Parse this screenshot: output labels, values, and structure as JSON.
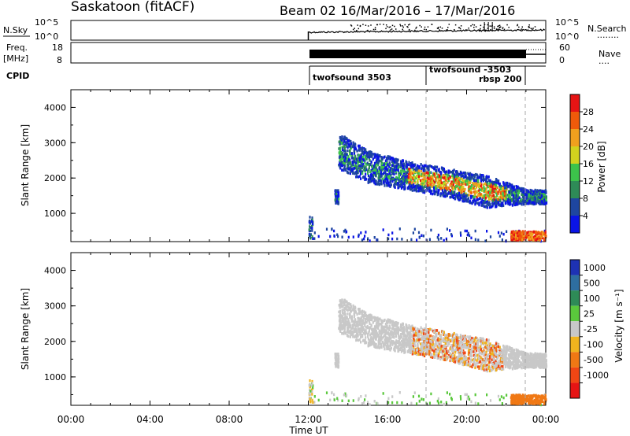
{
  "header": {
    "station": "Saskatoon (fitACF)",
    "beam": "Beam 02",
    "dates": "16/Mar/2016 – 17/Mar/2016"
  },
  "labels": {
    "nsky": "N.Sky",
    "nsky_ticks": [
      "10^5",
      "10^0"
    ],
    "nsearch": "N.Search",
    "nsearch_dots": "········",
    "nsearch_ticks": [
      "10^5",
      "10^0"
    ],
    "freq_line1": "Freq.",
    "freq_line2": "[MHz]",
    "freq_ticks": [
      "18",
      "8"
    ],
    "nave": "Nave",
    "nave_dots": "····",
    "nave_ticks": [
      "60",
      "0"
    ],
    "cpid": "CPID",
    "cpid_entries": [
      "twofsound 3503",
      "twofsound -3503",
      "rbsp 200"
    ]
  },
  "colorbars": {
    "power": {
      "label": "Power [dB]",
      "ticks": [
        "4",
        "8",
        "12",
        "16",
        "20",
        "24",
        "28"
      ],
      "colors": [
        "#0a14e6",
        "#1e46a0",
        "#2e8b57",
        "#3cc34b",
        "#d2d21e",
        "#f0a01e",
        "#f05a0a",
        "#e61414"
      ]
    },
    "velocity": {
      "label": "Velocity [m s⁻¹]",
      "ticks": [
        "1000",
        "500",
        "100",
        "25",
        "-25",
        "-100",
        "-500",
        "-1000"
      ],
      "colors": [
        "#1e32b4",
        "#2e6ea0",
        "#2e8b57",
        "#5ac83c",
        "#c8c8c8",
        "#f0b41e",
        "#f07814",
        "#f04614",
        "#e61414"
      ]
    }
  },
  "chart_data": [
    {
      "type": "heatmap",
      "title": "Power",
      "ylabel": "Slant Range [km]",
      "ylim": [
        200,
        4500
      ],
      "yticks": [
        1000,
        2000,
        3000,
        4000
      ],
      "xlim": [
        0,
        24
      ],
      "xticks_labels": [
        "00:00",
        "04:00",
        "08:00",
        "12:00",
        "16:00",
        "20:00",
        "00:00"
      ],
      "scatter_band": [
        {
          "x": 13.5,
          "range": [
            2300,
            3300
          ]
        },
        {
          "x": 15,
          "range": [
            1900,
            2800
          ]
        },
        {
          "x": 17,
          "range": [
            1700,
            2500
          ]
        },
        {
          "x": 19,
          "range": [
            1500,
            2300
          ]
        },
        {
          "x": 21,
          "range": [
            1200,
            2100
          ]
        },
        {
          "x": 23,
          "range": [
            1300,
            1700
          ]
        }
      ],
      "strong_echoes_db": 28
    },
    {
      "type": "heatmap",
      "title": "Velocity",
      "ylabel": "Slant Range [km]",
      "xlabel": "Time UT",
      "ylim": [
        200,
        4500
      ],
      "yticks": [
        1000,
        2000,
        3000,
        4000
      ],
      "xlim": [
        0,
        24
      ],
      "xticks_labels": [
        "00:00",
        "04:00",
        "08:00",
        "12:00",
        "16:00",
        "20:00",
        "00:00"
      ]
    }
  ]
}
